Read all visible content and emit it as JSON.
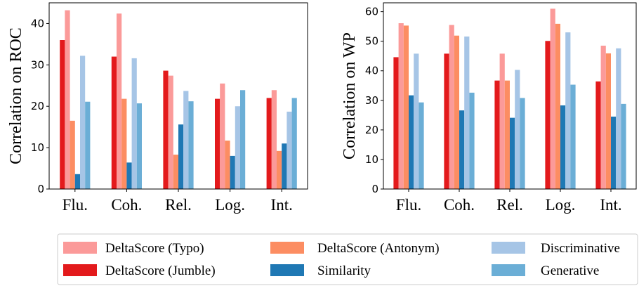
{
  "colors": {
    "typo": "#fb9a99",
    "jumble": "#e31a1c",
    "antonym": "#fc8d62",
    "similarity": "#1f78b4",
    "discriminative": "#a6c5e6",
    "generative": "#6baed6"
  },
  "legend": [
    {
      "key": "typo",
      "label": "DeltaScore (Typo)"
    },
    {
      "key": "jumble",
      "label": "DeltaScore (Jumble)"
    },
    {
      "key": "antonym",
      "label": "DeltaScore (Antonym)"
    },
    {
      "key": "similarity",
      "label": "Similarity"
    },
    {
      "key": "discriminative",
      "label": "Discriminative"
    },
    {
      "key": "generative",
      "label": "Generative"
    }
  ],
  "chart_data": [
    {
      "type": "bar",
      "ylabel": "Correlation on ROC",
      "ylim": [
        0,
        45
      ],
      "yticks": [
        0,
        10,
        20,
        30,
        40
      ],
      "categories": [
        "Flu.",
        "Coh.",
        "Rel.",
        "Log.",
        "Int."
      ],
      "series": [
        {
          "name": "DeltaScore (Jumble)",
          "key": "jumble",
          "values": [
            36,
            32,
            28.6,
            21.8,
            22
          ]
        },
        {
          "name": "DeltaScore (Typo)",
          "key": "typo",
          "values": [
            43.2,
            42.4,
            27.4,
            25.5,
            23.9
          ]
        },
        {
          "name": "DeltaScore (Antonym)",
          "key": "antonym",
          "values": [
            16.5,
            21.8,
            8.3,
            11.7,
            9.2
          ]
        },
        {
          "name": "Similarity",
          "key": "similarity",
          "values": [
            3.6,
            6.4,
            15.6,
            8.0,
            11.0
          ]
        },
        {
          "name": "Discriminative",
          "key": "discriminative",
          "values": [
            32.2,
            31.6,
            23.7,
            20.0,
            18.7
          ]
        },
        {
          "name": "Generative",
          "key": "generative",
          "values": [
            21.1,
            20.7,
            21.2,
            23.9,
            22.0
          ]
        }
      ]
    },
    {
      "type": "bar",
      "ylabel": "Correlation on WP",
      "ylim": [
        0,
        63
      ],
      "yticks": [
        0,
        10,
        20,
        30,
        40,
        50,
        60
      ],
      "categories": [
        "Flu.",
        "Coh.",
        "Rel.",
        "Log.",
        "Int."
      ],
      "series": [
        {
          "name": "DeltaScore (Jumble)",
          "key": "jumble",
          "values": [
            44.6,
            45.8,
            36.7,
            50.1,
            36.4
          ]
        },
        {
          "name": "DeltaScore (Typo)",
          "key": "typo",
          "values": [
            56.1,
            55.5,
            45.8,
            61.0,
            48.5
          ]
        },
        {
          "name": "DeltaScore (Antonym)",
          "key": "antonym",
          "values": [
            55.3,
            51.9,
            36.7,
            55.9,
            45.9
          ]
        },
        {
          "name": "Similarity",
          "key": "similarity",
          "values": [
            31.7,
            26.6,
            24.1,
            28.3,
            24.5
          ]
        },
        {
          "name": "Discriminative",
          "key": "discriminative",
          "values": [
            45.8,
            51.6,
            40.3,
            53.0,
            47.6
          ]
        },
        {
          "name": "Generative",
          "key": "generative",
          "values": [
            29.3,
            32.6,
            30.8,
            35.3,
            28.8
          ]
        }
      ]
    }
  ]
}
